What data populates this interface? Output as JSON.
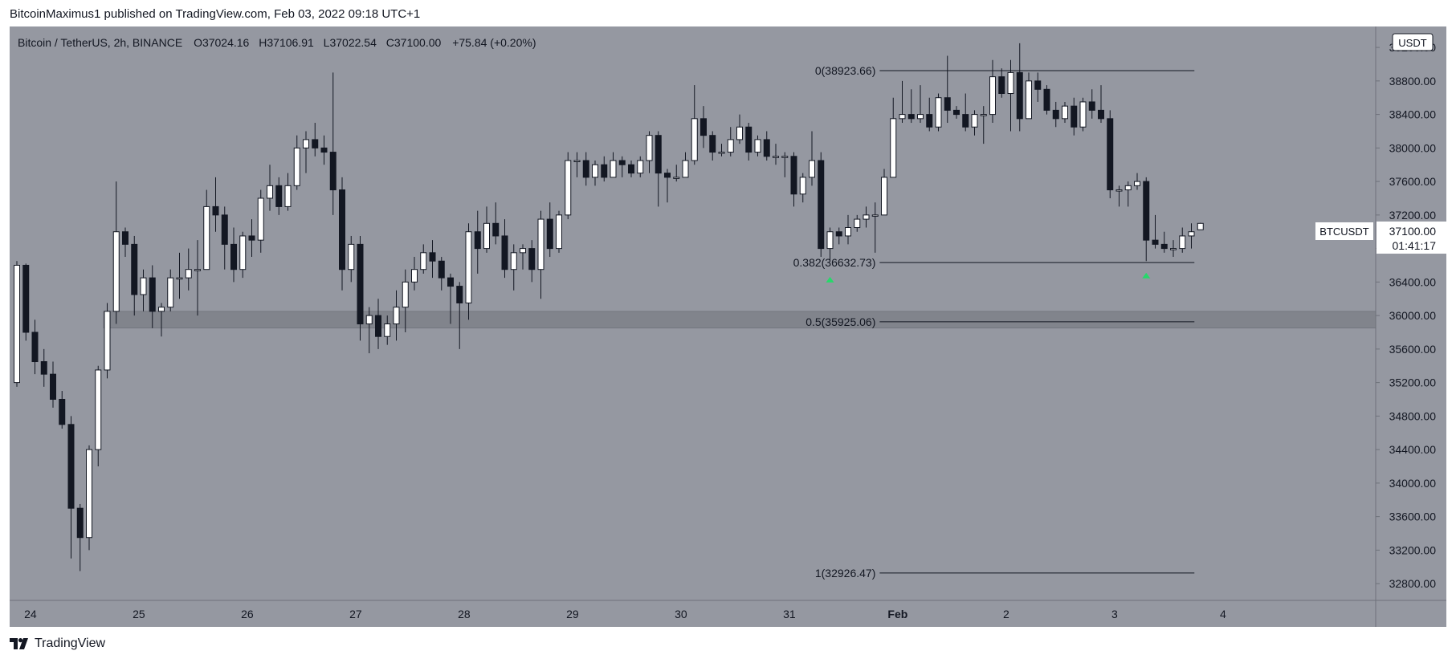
{
  "header": {
    "publisher": "BitcoinMaximus1",
    "published_text": "published on TradingView.com, Feb 03, 2022 09:18 UTC+1"
  },
  "footer": {
    "brand": "TradingView"
  },
  "colors": {
    "background": "#ffffff",
    "plot_bg": "#9598a1",
    "up_body": "#ffffff",
    "down_body": "#131722",
    "wick": "#131722",
    "zone": "#7b7e86",
    "arrow": "#26d96a"
  },
  "chart_data": {
    "type": "candlestick",
    "symbol": "Bitcoin / TetherUS, 2h, BINANCE",
    "ohlc": {
      "open_label": "O",
      "open": "37024.16",
      "high_label": "H",
      "high": "37106.91",
      "low_label": "L",
      "low": "37022.54",
      "close_label": "C",
      "close": "37100.00",
      "change": "+75.84 (+0.20%)"
    },
    "currency": "USDT",
    "price_tag": {
      "symbol": "BTCUSDT",
      "price": "37100.00",
      "countdown": "01:41:17"
    },
    "y_axis": {
      "min": 32600,
      "max": 39450,
      "ticks": [
        32800,
        33200,
        33600,
        34000,
        34400,
        34800,
        35200,
        35600,
        36000,
        36400,
        36800,
        37200,
        37600,
        38000,
        38400,
        38800,
        39200
      ],
      "tick_labels": [
        "32800.00",
        "33200.00",
        "33600.00",
        "34000.00",
        "34400.00",
        "34800.00",
        "35200.00",
        "35600.00",
        "36000.00",
        "36400.00",
        "36800.00",
        "37200.00",
        "37600.00",
        "38000.00",
        "38400.00",
        "38800.00",
        "39200.00"
      ]
    },
    "x_axis": {
      "labels": [
        "24",
        "25",
        "26",
        "27",
        "28",
        "29",
        "30",
        "31",
        "Feb",
        "2",
        "3",
        "4"
      ],
      "label_index": [
        1.5,
        13.5,
        25.5,
        37.5,
        49.5,
        61.5,
        73.5,
        85.5,
        97.5,
        109.5,
        121.5,
        133.5
      ],
      "bold": [
        false,
        false,
        false,
        false,
        false,
        false,
        false,
        false,
        true,
        false,
        false,
        false
      ]
    },
    "candles": [
      [
        35200,
        36600,
        35150,
        36650
      ],
      [
        36600,
        35800,
        35700,
        36620
      ],
      [
        35800,
        35450,
        35300,
        35950
      ],
      [
        35450,
        35300,
        35150,
        35600
      ],
      [
        35300,
        35000,
        34900,
        35450
      ],
      [
        35000,
        34700,
        34650,
        35100
      ],
      [
        34700,
        33700,
        33100,
        34800
      ],
      [
        33700,
        33350,
        32950,
        33750
      ],
      [
        33350,
        34400,
        33200,
        34450
      ],
      [
        34400,
        35350,
        34200,
        35400
      ],
      [
        35350,
        36050,
        35250,
        36150
      ],
      [
        36050,
        37000,
        35900,
        37600
      ],
      [
        37000,
        36850,
        36700,
        37050
      ],
      [
        36850,
        36250,
        36000,
        36950
      ],
      [
        36250,
        36450,
        36050,
        36550
      ],
      [
        36450,
        36050,
        35850,
        36600
      ],
      [
        36050,
        36100,
        35750,
        36150
      ],
      [
        36100,
        36450,
        36050,
        36550
      ],
      [
        36450,
        36450,
        36200,
        36750
      ],
      [
        36450,
        36550,
        36300,
        36800
      ],
      [
        36550,
        36550,
        36000,
        36900
      ],
      [
        36550,
        37300,
        36550,
        37500
      ],
      [
        37300,
        37200,
        37000,
        37650
      ],
      [
        37200,
        36850,
        36550,
        37300
      ],
      [
        36850,
        36550,
        36400,
        37050
      ],
      [
        36550,
        36950,
        36450,
        37000
      ],
      [
        36950,
        36900,
        36700,
        37150
      ],
      [
        36900,
        37400,
        36750,
        37500
      ],
      [
        37400,
        37550,
        37250,
        37800
      ],
      [
        37550,
        37300,
        37200,
        37650
      ],
      [
        37300,
        37550,
        37250,
        37700
      ],
      [
        37550,
        38000,
        37500,
        38150
      ],
      [
        38000,
        38100,
        37700,
        38200
      ],
      [
        38100,
        38000,
        37900,
        38300
      ],
      [
        38000,
        37950,
        37800,
        38150
      ],
      [
        37950,
        37500,
        37200,
        38900
      ],
      [
        37500,
        36550,
        36300,
        37650
      ],
      [
        36550,
        36850,
        36400,
        36950
      ],
      [
        36850,
        35900,
        35700,
        36950
      ],
      [
        35900,
        36000,
        35550,
        36100
      ],
      [
        36000,
        35750,
        35600,
        36200
      ],
      [
        35750,
        35900,
        35650,
        36000
      ],
      [
        35900,
        36100,
        35700,
        36300
      ],
      [
        36100,
        36400,
        35800,
        36550
      ],
      [
        36400,
        36550,
        36300,
        36700
      ],
      [
        36550,
        36750,
        36500,
        36850
      ],
      [
        36750,
        36650,
        36450,
        36900
      ],
      [
        36650,
        36450,
        36300,
        36700
      ],
      [
        36450,
        36350,
        35900,
        36500
      ],
      [
        36350,
        36150,
        35600,
        36400
      ],
      [
        36150,
        37000,
        35950,
        37100
      ],
      [
        37000,
        36800,
        36500,
        37250
      ],
      [
        36800,
        37100,
        36750,
        37300
      ],
      [
        37100,
        36950,
        36850,
        37350
      ],
      [
        36950,
        36550,
        36450,
        37150
      ],
      [
        36550,
        36750,
        36300,
        36850
      ],
      [
        36750,
        36800,
        36550,
        36850
      ],
      [
        36800,
        36550,
        36400,
        36900
      ],
      [
        36550,
        37150,
        36200,
        37250
      ],
      [
        37150,
        36800,
        36700,
        37350
      ],
      [
        36800,
        37200,
        36750,
        37250
      ],
      [
        37200,
        37850,
        37150,
        37950
      ],
      [
        37850,
        37850,
        37650,
        37950
      ],
      [
        37850,
        37650,
        37550,
        37950
      ],
      [
        37650,
        37800,
        37550,
        37850
      ],
      [
        37800,
        37650,
        37600,
        37900
      ],
      [
        37650,
        37850,
        37700,
        37950
      ],
      [
        37850,
        37800,
        37650,
        37900
      ],
      [
        37800,
        37700,
        37650,
        37850
      ],
      [
        37700,
        37850,
        37650,
        37900
      ],
      [
        37850,
        38150,
        37700,
        38200
      ],
      [
        38150,
        37700,
        37300,
        38200
      ],
      [
        37700,
        37650,
        37350,
        37750
      ],
      [
        37650,
        37650,
        37600,
        37800
      ],
      [
        37650,
        37850,
        37650,
        37950
      ],
      [
        37850,
        38350,
        37800,
        38750
      ],
      [
        38350,
        38150,
        38000,
        38500
      ],
      [
        38150,
        37950,
        37850,
        38200
      ],
      [
        37950,
        37950,
        37900,
        38050
      ],
      [
        37950,
        38100,
        37900,
        38250
      ],
      [
        38100,
        38250,
        38050,
        38400
      ],
      [
        38250,
        37950,
        37850,
        38300
      ],
      [
        37950,
        38100,
        37900,
        38150
      ],
      [
        38100,
        37900,
        37850,
        38200
      ],
      [
        37900,
        37900,
        37800,
        38050
      ],
      [
        37900,
        37900,
        37650,
        37950
      ],
      [
        37900,
        37450,
        37300,
        37950
      ],
      [
        37450,
        37650,
        37350,
        37700
      ],
      [
        37650,
        37850,
        37550,
        38200
      ],
      [
        37850,
        36800,
        36700,
        37950
      ],
      [
        36800,
        37000,
        36650,
        37050
      ],
      [
        37000,
        36950,
        36850,
        37050
      ],
      [
        36950,
        37050,
        36850,
        37200
      ],
      [
        37050,
        37150,
        37000,
        37200
      ],
      [
        37150,
        37200,
        37050,
        37300
      ],
      [
        37200,
        37200,
        36750,
        37350
      ],
      [
        37200,
        37650,
        37200,
        37750
      ],
      [
        37650,
        38350,
        37650,
        38600
      ],
      [
        38350,
        38400,
        38300,
        38800
      ],
      [
        38400,
        38350,
        38300,
        38700
      ],
      [
        38350,
        38400,
        38300,
        38750
      ],
      [
        38400,
        38250,
        38200,
        38600
      ],
      [
        38250,
        38600,
        38200,
        38650
      ],
      [
        38600,
        38450,
        38300,
        39100
      ],
      [
        38450,
        38400,
        38350,
        38500
      ],
      [
        38400,
        38250,
        38200,
        38650
      ],
      [
        38250,
        38400,
        38150,
        38450
      ],
      [
        38400,
        38400,
        38050,
        38500
      ],
      [
        38400,
        38850,
        38300,
        39050
      ],
      [
        38850,
        38650,
        38600,
        38950
      ],
      [
        38650,
        38900,
        38200,
        39050
      ],
      [
        38900,
        38350,
        38200,
        39250
      ],
      [
        38350,
        38800,
        38350,
        38900
      ],
      [
        38800,
        38700,
        38550,
        38900
      ],
      [
        38700,
        38450,
        38400,
        38750
      ],
      [
        38450,
        38350,
        38250,
        38550
      ],
      [
        38350,
        38500,
        38300,
        38550
      ],
      [
        38500,
        38250,
        38150,
        38600
      ],
      [
        38250,
        38550,
        38200,
        38600
      ],
      [
        38550,
        38450,
        38350,
        38700
      ],
      [
        38450,
        38350,
        38300,
        38750
      ],
      [
        38350,
        37500,
        37400,
        38450
      ],
      [
        37500,
        37500,
        37300,
        37550
      ],
      [
        37500,
        37550,
        37300,
        37600
      ],
      [
        37550,
        37600,
        37500,
        37700
      ],
      [
        37600,
        36900,
        36650,
        37650
      ],
      [
        36900,
        36850,
        36800,
        37200
      ],
      [
        36850,
        36800,
        36750,
        37000
      ],
      [
        36800,
        36800,
        36700,
        36900
      ],
      [
        36800,
        36950,
        36750,
        37050
      ],
      [
        36950,
        37000,
        36800,
        37100
      ],
      [
        37024.16,
        37100,
        37022.54,
        37106.91
      ]
    ],
    "fib_levels": [
      {
        "label": "0(38923.66)",
        "price": 38923.66
      },
      {
        "label": "0.382(36632.73)",
        "price": 36632.73
      },
      {
        "label": "0.5(35925.06)",
        "price": 35925.06
      },
      {
        "label": "1(32926.47)",
        "price": 32926.47
      }
    ],
    "support_zone": [
      35850,
      36050
    ],
    "arrows": [
      {
        "index": 90,
        "price": 36500
      },
      {
        "index": 125,
        "price": 36550
      }
    ]
  }
}
